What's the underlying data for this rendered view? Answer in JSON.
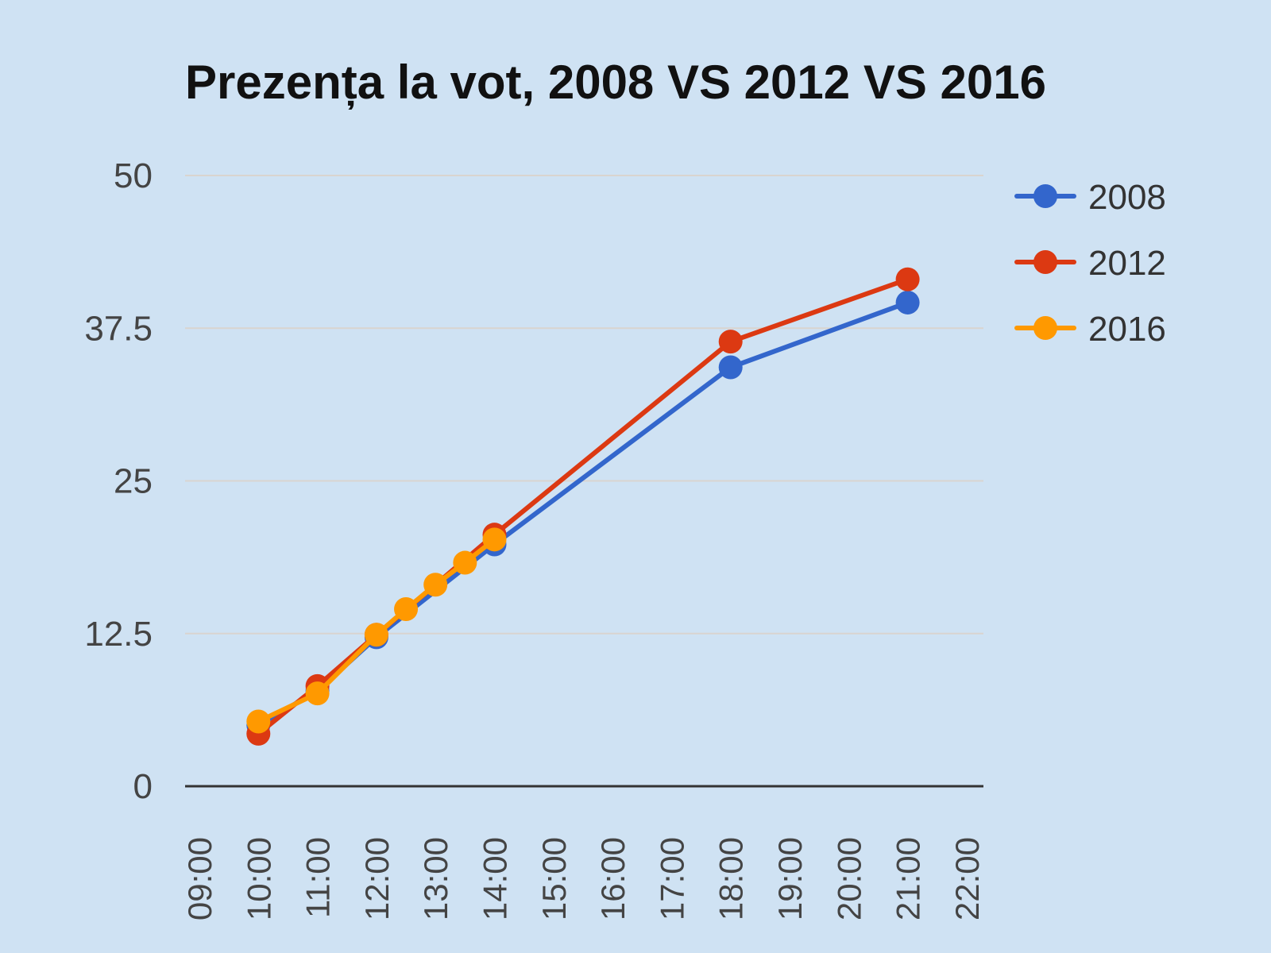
{
  "chart_data": {
    "type": "line",
    "title": "Prezența la vot, 2008 VS 2012 VS 2016",
    "xlabel": "",
    "ylabel": "",
    "ylim": [
      0,
      50
    ],
    "yticks": [
      "0",
      "12.5",
      "25",
      "37.5",
      "50"
    ],
    "categories": [
      "09:00",
      "10:00",
      "11:00",
      "12:00",
      "13:00",
      "14:00",
      "15:00",
      "16:00",
      "17:00",
      "18:00",
      "19:00",
      "20:00",
      "21:00",
      "22:00"
    ],
    "grid": true,
    "legend_position": "right",
    "series": [
      {
        "name": "2008",
        "color": "#3366cc",
        "points": [
          {
            "x": "10:00",
            "y": 5.0
          },
          {
            "x": "11:00",
            "y": 7.8
          },
          {
            "x": "12:00",
            "y": 12.2
          },
          {
            "x": "14:00",
            "y": 19.8
          },
          {
            "x": "18:00",
            "y": 34.3
          },
          {
            "x": "21:00",
            "y": 39.6
          }
        ]
      },
      {
        "name": "2012",
        "color": "#dc3912",
        "points": [
          {
            "x": "10:00",
            "y": 4.3
          },
          {
            "x": "11:00",
            "y": 8.2
          },
          {
            "x": "12:00",
            "y": 12.4
          },
          {
            "x": "14:00",
            "y": 20.6
          },
          {
            "x": "18:00",
            "y": 36.4
          },
          {
            "x": "21:00",
            "y": 41.5
          }
        ]
      },
      {
        "name": "2016",
        "color": "#ff9900",
        "points": [
          {
            "x": "10:00",
            "y": 5.3
          },
          {
            "x": "11:00",
            "y": 7.6
          },
          {
            "x": "12:00",
            "y": 12.4
          },
          {
            "x": "12:30",
            "y": 14.5
          },
          {
            "x": "13:00",
            "y": 16.5
          },
          {
            "x": "13:30",
            "y": 18.3
          },
          {
            "x": "14:00",
            "y": 20.2
          }
        ]
      }
    ]
  }
}
